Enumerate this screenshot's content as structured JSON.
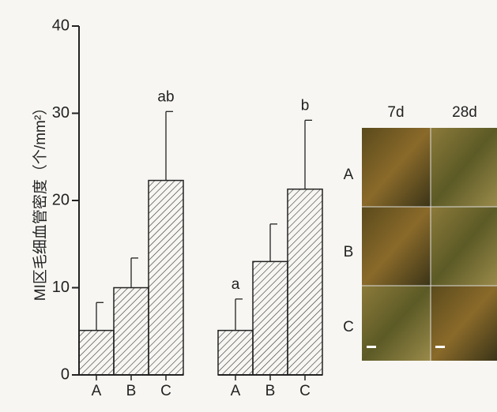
{
  "chart_data": {
    "type": "bar",
    "y_label": "MI区毛细血管密度（个/mm²）",
    "ylim": [
      0,
      40
    ],
    "yticks": [
      0,
      10,
      20,
      30,
      40
    ],
    "groups": [
      {
        "categories": [
          "A",
          "B",
          "C"
        ],
        "values": [
          5.1,
          10.0,
          22.3
        ],
        "errors": [
          3.2,
          3.4,
          7.9
        ],
        "annotations": [
          null,
          null,
          "ab"
        ]
      },
      {
        "categories": [
          "A",
          "B",
          "C"
        ],
        "values": [
          5.1,
          13.0,
          21.3
        ],
        "errors": [
          3.6,
          4.3,
          7.9
        ],
        "annotations": [
          "a",
          null,
          "b"
        ]
      }
    ],
    "color": "#ffffff",
    "hatch_color": "#333333"
  },
  "micrographs": {
    "columns": [
      "7d",
      "28d"
    ],
    "rows": [
      "A",
      "B",
      "C"
    ]
  }
}
